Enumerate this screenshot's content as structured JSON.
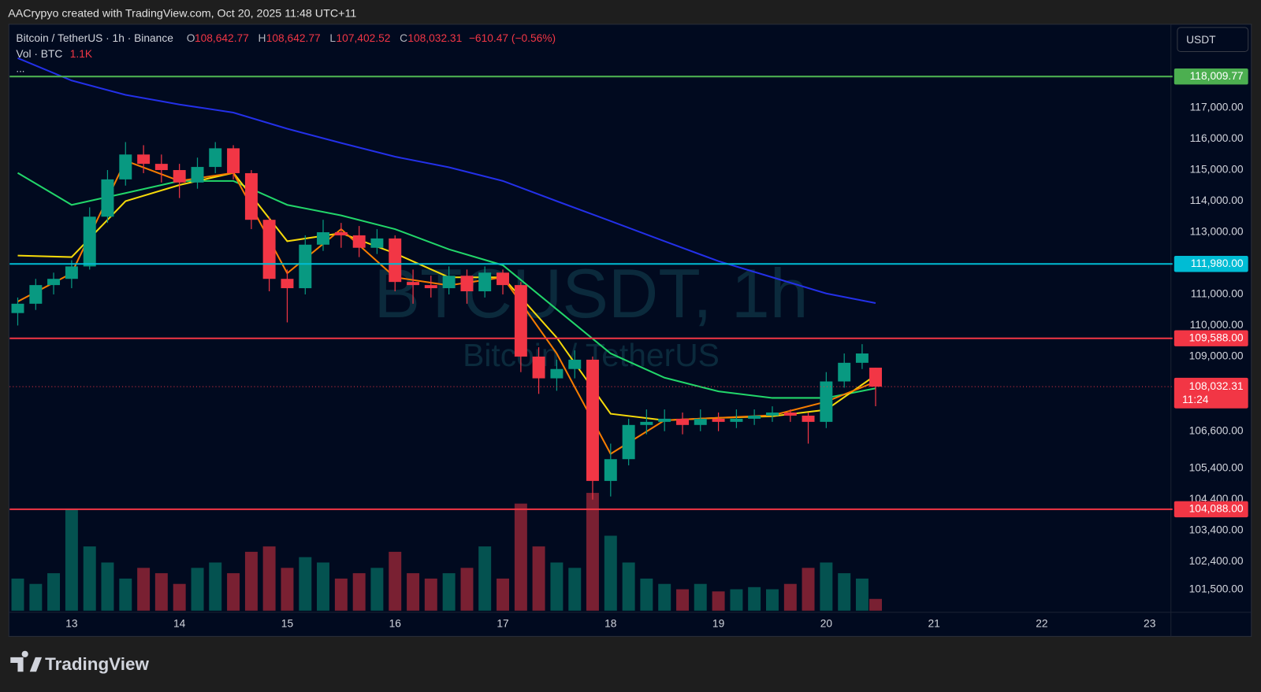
{
  "header": {
    "caption": "AACrypyo created with TradingView.com, Oct 20, 2025 11:48 UTC+11",
    "symbol": "Bitcoin / TetherUS · 1h · Binance",
    "ohlc": [
      {
        "key": "O",
        "text": "108,642.77"
      },
      {
        "key": "H",
        "text": "108,642.77"
      },
      {
        "key": "L",
        "text": "107,402.52"
      },
      {
        "key": "C",
        "text": "108,032.31"
      }
    ],
    "change": "−610.47 (−0.56%)",
    "volume_title": "Vol · BTC",
    "volume_text": "1.1K",
    "more": "..."
  },
  "currency_button": "USDT",
  "watermark": {
    "symbol": "BTCUSDT, 1h",
    "name": "Bitcoin / TetherUS"
  },
  "brand": "TradingView",
  "chart_data": {
    "type": "candlestick",
    "x": [
      12.5,
      12.667,
      12.833,
      13.0,
      13.167,
      13.333,
      13.5,
      13.667,
      13.833,
      14.0,
      14.167,
      14.333,
      14.5,
      14.667,
      14.833,
      15.0,
      15.167,
      15.333,
      15.5,
      15.667,
      15.833,
      16.0,
      16.167,
      16.333,
      16.5,
      16.667,
      16.833,
      17.0,
      17.167,
      17.333,
      17.5,
      17.667,
      17.833,
      18.0,
      18.167,
      18.333,
      18.5,
      18.667,
      18.833,
      19.0,
      19.167,
      19.333,
      19.5,
      19.667,
      19.833,
      20.0,
      20.167,
      20.333,
      20.458
    ],
    "open": [
      110400,
      110700,
      111300,
      111500,
      111900,
      113500,
      114700,
      115500,
      115200,
      115000,
      114600,
      115100,
      115700,
      114900,
      113400,
      111500,
      111200,
      112600,
      113000,
      112900,
      112500,
      112800,
      111400,
      111300,
      111200,
      111600,
      111100,
      111700,
      111300,
      109000,
      108300,
      108600,
      108900,
      105000,
      105700,
      106800,
      106900,
      107000,
      106800,
      107000,
      106900,
      107000,
      107100,
      107200,
      107100,
      106900,
      108200,
      108800,
      108642.77
    ],
    "high": [
      110900,
      111500,
      111700,
      112100,
      113800,
      115000,
      115900,
      115800,
      115500,
      115200,
      115400,
      115900,
      115800,
      115000,
      113500,
      111800,
      112900,
      113400,
      113300,
      113200,
      113100,
      112900,
      111800,
      111600,
      111900,
      111800,
      111900,
      111800,
      111400,
      109300,
      108900,
      109200,
      109000,
      106200,
      107000,
      107300,
      107300,
      107200,
      107300,
      107200,
      107300,
      107300,
      107400,
      107300,
      107200,
      108500,
      109100,
      109400,
      108642.77
    ],
    "low": [
      110000,
      110500,
      111000,
      111200,
      111800,
      113300,
      114500,
      114900,
      114600,
      114100,
      114400,
      114900,
      114700,
      113100,
      111100,
      110100,
      111000,
      112400,
      112500,
      112200,
      112300,
      111100,
      110700,
      110900,
      111000,
      110700,
      110900,
      111000,
      108500,
      107800,
      107900,
      108300,
      104400,
      104500,
      105500,
      106500,
      106600,
      106500,
      106600,
      106600,
      106700,
      106800,
      106900,
      106900,
      106200,
      106700,
      108000,
      108600,
      107402.52
    ],
    "close": [
      110700,
      111300,
      111500,
      111900,
      113500,
      114700,
      115500,
      115200,
      115000,
      114600,
      115100,
      115700,
      114900,
      113400,
      111500,
      111200,
      112600,
      113000,
      112900,
      112500,
      112800,
      111400,
      111300,
      111200,
      111600,
      111100,
      111700,
      111300,
      109000,
      108300,
      108600,
      108900,
      105000,
      105700,
      106800,
      106900,
      107000,
      106800,
      107000,
      106900,
      107000,
      107100,
      107200,
      107100,
      106900,
      108200,
      108800,
      109100,
      108032.31
    ],
    "up_color": "#089981",
    "down_color": "#f23645",
    "volume": {
      "values": [
        3000,
        2500,
        3500,
        9500,
        6000,
        4500,
        3000,
        4000,
        3500,
        2500,
        4000,
        4500,
        3500,
        5500,
        6000,
        4000,
        5000,
        4500,
        3000,
        3500,
        4000,
        5500,
        3500,
        3000,
        3500,
        4000,
        6000,
        3000,
        10000,
        6000,
        4500,
        4000,
        11000,
        7000,
        4500,
        3000,
        2500,
        2000,
        2500,
        1800,
        2000,
        2200,
        2000,
        2500,
        4000,
        4500,
        3500,
        3000,
        1100
      ],
      "ylim": [
        0,
        12000
      ]
    },
    "ma": {
      "x": [
        12.5,
        13.0,
        13.5,
        14.0,
        14.5,
        15.0,
        15.5,
        16.0,
        16.5,
        17.0,
        17.5,
        18.0,
        18.5,
        19.0,
        19.5,
        20.0,
        20.458
      ],
      "series": [
        {
          "color": "#2330e8",
          "values": [
            118600,
            117880,
            117420,
            117110,
            116850,
            116330,
            115870,
            115430,
            115090,
            114650,
            114000,
            113360,
            112710,
            112070,
            111550,
            111030,
            110720
          ]
        },
        {
          "color": "#22d66a",
          "values": [
            114910,
            113880,
            114260,
            114650,
            114650,
            113880,
            113540,
            113100,
            112450,
            111940,
            110520,
            109100,
            108320,
            107880,
            107670,
            107670,
            107980
          ]
        },
        {
          "color": "#f5d90a",
          "values": [
            112250,
            112200,
            114000,
            114520,
            114910,
            112710,
            112970,
            112320,
            111550,
            111550,
            109610,
            107160,
            106950,
            107030,
            107080,
            107290,
            108400
          ]
        },
        {
          "color": "#f57c00",
          "values": [
            110770,
            111680,
            115300,
            114650,
            114910,
            111680,
            113100,
            111550,
            111290,
            111550,
            109100,
            105870,
            106950,
            107030,
            107110,
            107550,
            108190
          ]
        }
      ]
    },
    "xlim": [
      12.425,
      23.19
    ],
    "xticks": [
      13,
      14,
      15,
      16,
      17,
      18,
      19,
      20,
      21,
      22,
      23
    ],
    "ylim": [
      100050,
      119690
    ],
    "yticks": [
      {
        "value": 117000,
        "label": "117,000.00"
      },
      {
        "value": 116000,
        "label": "116,000.00"
      },
      {
        "value": 115000,
        "label": "115,000.00"
      },
      {
        "value": 114000,
        "label": "114,000.00"
      },
      {
        "value": 113000,
        "label": "113,000.00"
      },
      {
        "value": 111000,
        "label": "111,000.00"
      },
      {
        "value": 110000,
        "label": "110,000.00"
      },
      {
        "value": 109000,
        "label": "109,000.00"
      },
      {
        "value": 106600,
        "label": "106,600.00"
      },
      {
        "value": 105400,
        "label": "105,400.00"
      },
      {
        "value": 104400,
        "label": "104,400.00"
      },
      {
        "value": 103400,
        "label": "103,400.00"
      },
      {
        "value": 102400,
        "label": "102,400.00"
      },
      {
        "value": 101500,
        "label": "101,500.00"
      }
    ],
    "hlines": [
      {
        "value": 118009.77,
        "label": "118,009.77",
        "color": "#4caf50"
      },
      {
        "value": 111980,
        "label": "111,980.00",
        "color": "#00bcd4"
      },
      {
        "value": 109588,
        "label": "109,588.00",
        "color": "#f23645"
      },
      {
        "value": 104088,
        "label": "104,088.00",
        "color": "#f23645"
      }
    ],
    "last_price": {
      "value": 108032.31,
      "label": "108,032.31",
      "countdown": "11:24",
      "color": "#f23645"
    }
  }
}
